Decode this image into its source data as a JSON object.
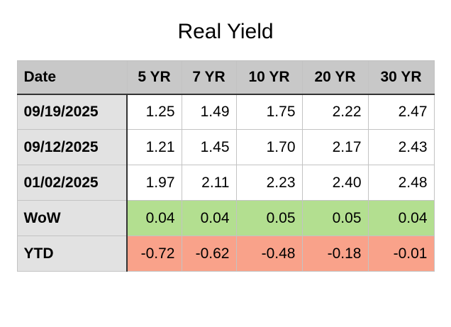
{
  "title": "Real Yield",
  "chart_data": {
    "type": "table",
    "title": "Real Yield",
    "columns": [
      "Date",
      "5 YR",
      "7 YR",
      "10 YR",
      "20 YR",
      "30 YR"
    ],
    "rows": [
      {
        "label": "09/19/2025",
        "values": [
          1.25,
          1.49,
          1.75,
          2.22,
          2.47
        ]
      },
      {
        "label": "09/12/2025",
        "values": [
          1.21,
          1.45,
          1.7,
          2.17,
          2.43
        ]
      },
      {
        "label": "01/02/2025",
        "values": [
          1.97,
          2.11,
          2.23,
          2.4,
          2.48
        ]
      },
      {
        "label": "WoW",
        "values": [
          0.04,
          0.04,
          0.05,
          0.05,
          0.04
        ]
      },
      {
        "label": "YTD",
        "values": [
          -0.72,
          -0.62,
          -0.48,
          -0.18,
          -0.01
        ]
      }
    ],
    "row_highlights": {
      "WoW": "green",
      "YTD": "red"
    }
  },
  "table": {
    "header": [
      "Date",
      "5 YR",
      "7 YR",
      "10 YR",
      "20 YR",
      "30 YR"
    ],
    "rows": [
      {
        "label": "09/19/2025",
        "values": [
          "1.25",
          "1.49",
          "1.75",
          "2.22",
          "2.47"
        ]
      },
      {
        "label": "09/12/2025",
        "values": [
          "1.21",
          "1.45",
          "1.70",
          "2.17",
          "2.43"
        ]
      },
      {
        "label": "01/02/2025",
        "values": [
          "1.97",
          "2.11",
          "2.23",
          "2.40",
          "2.48"
        ]
      },
      {
        "label": "WoW",
        "values": [
          "0.04",
          "0.04",
          "0.05",
          "0.05",
          "0.04"
        ]
      },
      {
        "label": "YTD",
        "values": [
          "-0.72",
          "-0.62",
          "-0.48",
          "-0.18",
          "-0.01"
        ]
      }
    ]
  },
  "colors": {
    "header_bg": "#c8c8c8",
    "label_column_bg": "#e2e2e2",
    "wow_row_bg": "#b3df90",
    "ytd_row_bg": "#f9a28a",
    "grid_light": "#c3c3c3",
    "grid_dark": "#333333",
    "outer_border": "#a9a9a9"
  }
}
